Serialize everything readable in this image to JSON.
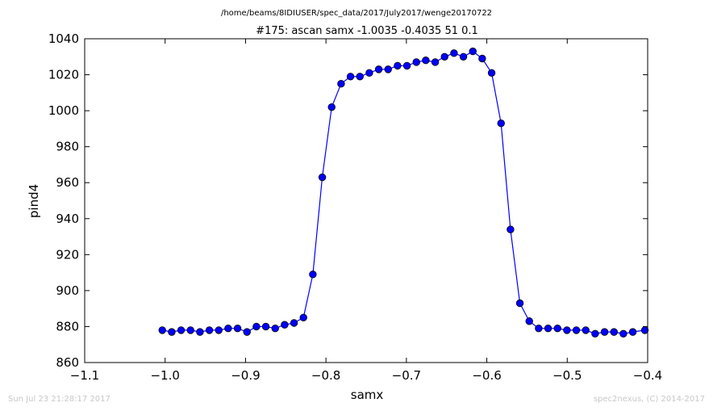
{
  "suptitle": "/home/beams/8IDIUSER/spec_data/2017/July2017/wenge20170722",
  "footer_left": "Sun Jul 23 21:28:17 2017",
  "footer_right": "spec2nexus, (C) 2014-2017",
  "colors": {
    "series": "#0000ff",
    "footer": "#c8c8c8"
  },
  "chart_data": {
    "type": "line",
    "title": "#175: ascan  samx -1.0035 -0.4035  51 0.1",
    "xlabel": "samx",
    "ylabel": "pind4",
    "xlim": [
      -1.1,
      -0.4
    ],
    "ylim": [
      860,
      1040
    ],
    "xticks": [
      -1.1,
      -1.0,
      -0.9,
      -0.8,
      -0.7,
      -0.6,
      -0.5,
      -0.4
    ],
    "xtick_labels": [
      "−1.1",
      "−1.0",
      "−0.9",
      "−0.8",
      "−0.7",
      "−0.6",
      "−0.5",
      "−0.4"
    ],
    "yticks": [
      860,
      880,
      900,
      920,
      940,
      960,
      980,
      1000,
      1020,
      1040
    ],
    "ytick_labels": [
      "860",
      "880",
      "900",
      "920",
      "940",
      "960",
      "980",
      "1000",
      "1020",
      "1040"
    ],
    "grid": false,
    "marker": "circle",
    "series": [
      {
        "x": [
          -1.0035,
          -0.9918,
          -0.9801,
          -0.9684,
          -0.9567,
          -0.945,
          -0.9333,
          -0.9216,
          -0.9099,
          -0.8982,
          -0.8865,
          -0.8748,
          -0.8631,
          -0.8514,
          -0.8397,
          -0.828,
          -0.8163,
          -0.8046,
          -0.7929,
          -0.7812,
          -0.7695,
          -0.7578,
          -0.7461,
          -0.7344,
          -0.7227,
          -0.711,
          -0.6993,
          -0.6876,
          -0.6759,
          -0.6642,
          -0.6525,
          -0.6408,
          -0.6291,
          -0.6174,
          -0.6057,
          -0.594,
          -0.5823,
          -0.5706,
          -0.5589,
          -0.5472,
          -0.5355,
          -0.5238,
          -0.5121,
          -0.5004,
          -0.4887,
          -0.477,
          -0.4653,
          -0.4536,
          -0.4419,
          -0.4302,
          -0.4185,
          -0.4035
        ],
        "y": [
          878,
          877,
          878,
          878,
          877,
          878,
          878,
          879,
          879,
          877,
          880,
          880,
          879,
          881,
          882,
          885,
          909,
          963,
          1002,
          1015,
          1019,
          1019,
          1021,
          1023,
          1023,
          1025,
          1025,
          1027,
          1028,
          1027,
          1030,
          1032,
          1030,
          1033,
          1029,
          1021,
          993,
          934,
          893,
          883,
          879,
          879,
          879,
          878,
          878,
          878,
          876,
          877,
          877,
          876,
          877,
          878
        ]
      }
    ]
  }
}
